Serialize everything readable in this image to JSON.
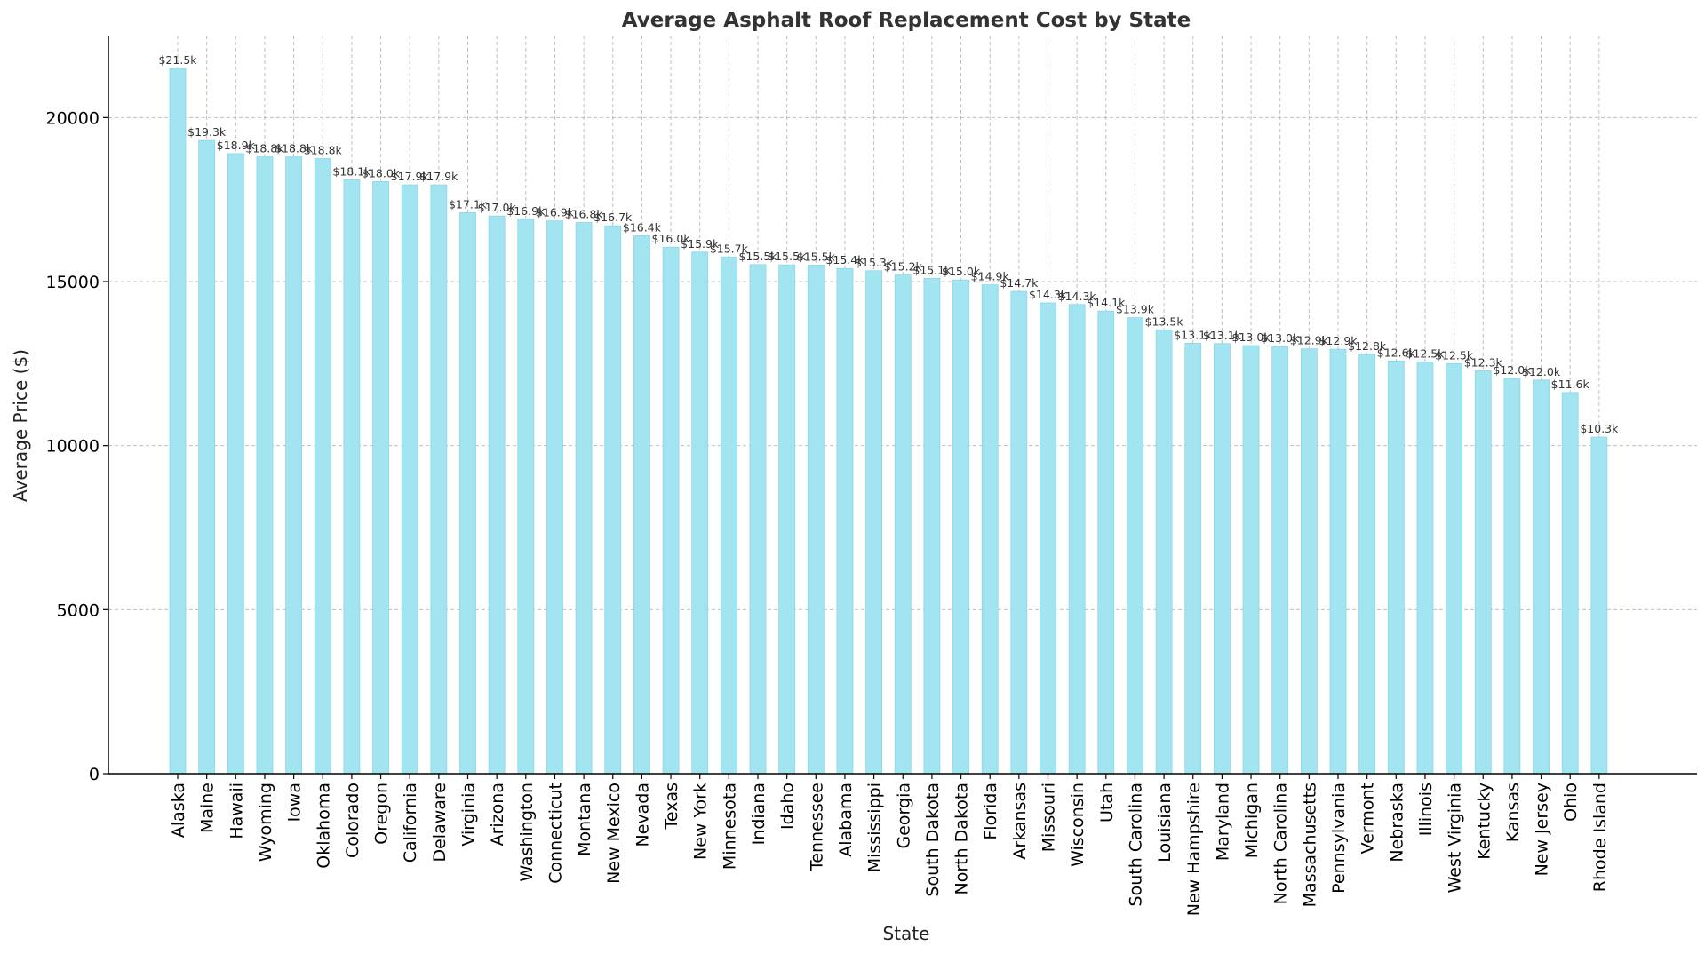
{
  "chart_data": {
    "type": "bar",
    "title": "Average Asphalt Roof Replacement Cost by State",
    "xlabel": "State",
    "ylabel": "Average Price ($)",
    "ylim": [
      0,
      22500
    ],
    "yticks": [
      0,
      5000,
      10000,
      15000,
      20000
    ],
    "grid": true,
    "bar_color": "#a3e4f1",
    "bar_edge_color": "#8ad6e8",
    "categories": [
      "Alaska",
      "Maine",
      "Hawaii",
      "Wyoming",
      "Iowa",
      "Oklahoma",
      "Colorado",
      "Oregon",
      "California",
      "Delaware",
      "Virginia",
      "Arizona",
      "Washington",
      "Connecticut",
      "Montana",
      "New Mexico",
      "Nevada",
      "Texas",
      "New York",
      "Minnesota",
      "Indiana",
      "Idaho",
      "Tennessee",
      "Alabama",
      "Mississippi",
      "Georgia",
      "South Dakota",
      "North Dakota",
      "Florida",
      "Arkansas",
      "Missouri",
      "Wisconsin",
      "Utah",
      "South Carolina",
      "Louisiana",
      "New Hampshire",
      "Maryland",
      "Michigan",
      "North Carolina",
      "Massachusetts",
      "Pennsylvania",
      "Vermont",
      "Nebraska",
      "Illinois",
      "West Virginia",
      "Kentucky",
      "Kansas",
      "New Jersey",
      "Ohio",
      "Rhode Island"
    ],
    "values": [
      21500,
      19300,
      18900,
      18800,
      18800,
      18750,
      18100,
      18050,
      17950,
      17950,
      17100,
      17000,
      16900,
      16850,
      16800,
      16700,
      16400,
      16050,
      15900,
      15750,
      15520,
      15510,
      15500,
      15400,
      15330,
      15200,
      15100,
      15050,
      14900,
      14700,
      14350,
      14300,
      14100,
      13900,
      13530,
      13120,
      13110,
      13050,
      13020,
      12950,
      12940,
      12780,
      12580,
      12550,
      12500,
      12280,
      12050,
      12000,
      11620,
      10260
    ],
    "data_labels": [
      "$21.5k",
      "$19.3k",
      "$18.9k",
      "$18.8k",
      "$18.8k",
      "$18.8k",
      "$18.1k",
      "$18.0k",
      "$17.9k",
      "$17.9k",
      "$17.1k",
      "$17.0k",
      "$16.9k",
      "$16.9k",
      "$16.8k",
      "$16.7k",
      "$16.4k",
      "$16.0k",
      "$15.9k",
      "$15.7k",
      "$15.5k",
      "$15.5k",
      "$15.5k",
      "$15.4k",
      "$15.3k",
      "$15.2k",
      "$15.1k",
      "$15.0k",
      "$14.9k",
      "$14.7k",
      "$14.3k",
      "$14.3k",
      "$14.1k",
      "$13.9k",
      "$13.5k",
      "$13.1k",
      "$13.1k",
      "$13.0k",
      "$13.0k",
      "$12.9k",
      "$12.9k",
      "$12.8k",
      "$12.6k",
      "$12.5k",
      "$12.5k",
      "$12.3k",
      "$12.0k",
      "$12.0k",
      "$11.6k",
      "$10.3k"
    ]
  }
}
